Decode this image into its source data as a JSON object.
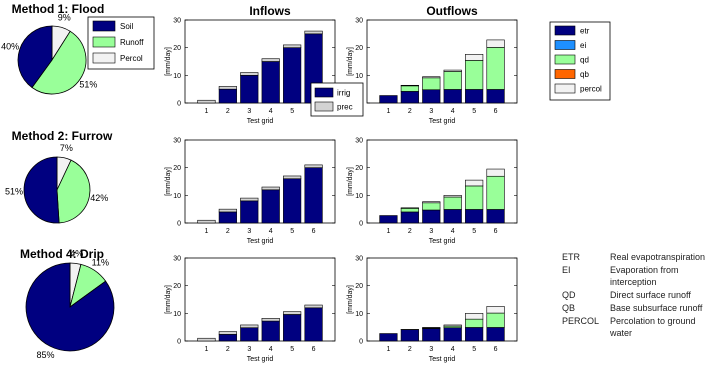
{
  "colors": {
    "soil": "#000080",
    "runoff": "#99FF99",
    "percol": "#F2F2F2",
    "irrig": "#000080",
    "prec": "#D3D3D3",
    "etr": "#000080",
    "ei": "#1E90FF",
    "qd": "#99FF99",
    "qb": "#FF6600",
    "percol_bar": "#F2F2F2"
  },
  "headers": {
    "inflows": "Inflows",
    "outflows": "Outflows"
  },
  "pie_legend": [
    "Soil",
    "Runoff",
    "Percol"
  ],
  "inflow_legend": [
    "irrig",
    "prec"
  ],
  "outflow_legend": [
    "etr",
    "ei",
    "qd",
    "qb",
    "percol"
  ],
  "glossary": [
    {
      "abbr": "ETR",
      "lines": [
        "Real evapotranspiration"
      ]
    },
    {
      "abbr": "EI",
      "lines": [
        "Evaporation from",
        "interception"
      ]
    },
    {
      "abbr": "QD",
      "lines": [
        "Direct surface runoff"
      ]
    },
    {
      "abbr": "QB",
      "lines": [
        "Base subsurface runoff"
      ]
    },
    {
      "abbr": "PERCOL",
      "lines": [
        "Percolation to ground",
        "water"
      ]
    }
  ],
  "chart_data": [
    {
      "type": "pie",
      "title": "Method 1: Flood",
      "labels": [
        "Soil",
        "Runoff",
        "Percol"
      ],
      "values": [
        40,
        51,
        9
      ],
      "value_labels": [
        "40%",
        "51%",
        "9%"
      ]
    },
    {
      "type": "pie",
      "title": "Method 2: Furrow",
      "labels": [
        "Soil",
        "Runoff",
        "Percol"
      ],
      "values": [
        51,
        42,
        7
      ],
      "value_labels": [
        "51%",
        "42%",
        "7%"
      ]
    },
    {
      "type": "pie",
      "title": "Method 4: Drip",
      "labels": [
        "Soil",
        "Runoff",
        "Percol"
      ],
      "values": [
        85,
        11,
        4
      ],
      "value_labels": [
        "85%",
        "11%",
        "4%"
      ]
    },
    {
      "type": "bar",
      "stacked": true,
      "row": 0,
      "col": "inflows",
      "xlabel": "Test grid",
      "ylabel": "[mm/day]",
      "ylim": [
        0,
        30
      ],
      "yticks": [
        0,
        10,
        20,
        30
      ],
      "categories": [
        "1",
        "2",
        "3",
        "4",
        "5",
        "6"
      ],
      "series": [
        {
          "name": "irrig",
          "values": [
            0,
            5,
            10,
            15,
            20,
            25
          ]
        },
        {
          "name": "prec",
          "values": [
            1,
            1,
            1,
            1,
            1,
            1
          ]
        }
      ]
    },
    {
      "type": "bar",
      "stacked": true,
      "row": 1,
      "col": "inflows",
      "xlabel": "Test grid",
      "ylabel": "[mm/day]",
      "ylim": [
        0,
        30
      ],
      "yticks": [
        0,
        10,
        20,
        30
      ],
      "categories": [
        "1",
        "2",
        "3",
        "4",
        "5",
        "6"
      ],
      "series": [
        {
          "name": "irrig",
          "values": [
            0,
            4,
            8,
            12,
            16,
            20
          ]
        },
        {
          "name": "prec",
          "values": [
            1,
            1,
            1,
            1,
            1,
            1
          ]
        }
      ]
    },
    {
      "type": "bar",
      "stacked": true,
      "row": 2,
      "col": "inflows",
      "xlabel": "Test grid",
      "ylabel": "[mm/day]",
      "ylim": [
        0,
        30
      ],
      "yticks": [
        0,
        10,
        20,
        30
      ],
      "categories": [
        "1",
        "2",
        "3",
        "4",
        "5",
        "6"
      ],
      "series": [
        {
          "name": "irrig",
          "values": [
            0,
            2.4,
            4.8,
            7.2,
            9.6,
            12
          ]
        },
        {
          "name": "prec",
          "values": [
            1,
            1,
            1,
            1,
            1,
            1
          ]
        }
      ]
    },
    {
      "type": "bar",
      "stacked": true,
      "row": 0,
      "col": "outflows",
      "xlabel": "Test grid",
      "ylabel": "[mm/day]",
      "ylim": [
        0,
        30
      ],
      "yticks": [
        0,
        10,
        20,
        30
      ],
      "categories": [
        "1",
        "2",
        "3",
        "4",
        "5",
        "6"
      ],
      "series": [
        {
          "name": "etr",
          "values": [
            2.7,
            4.2,
            4.8,
            4.9,
            4.9,
            4.9
          ]
        },
        {
          "name": "ei",
          "values": [
            0,
            0,
            0,
            0,
            0,
            0
          ]
        },
        {
          "name": "qd",
          "values": [
            0,
            2.0,
            4.3,
            6.5,
            10.5,
            15.2
          ]
        },
        {
          "name": "qb",
          "values": [
            0,
            0,
            0,
            0,
            0,
            0
          ]
        },
        {
          "name": "percol",
          "values": [
            0,
            0.2,
            0.4,
            0.5,
            2.2,
            2.7
          ]
        }
      ]
    },
    {
      "type": "bar",
      "stacked": true,
      "row": 1,
      "col": "outflows",
      "xlabel": "Test grid",
      "ylabel": "[mm/day]",
      "ylim": [
        0,
        30
      ],
      "yticks": [
        0,
        10,
        20,
        30
      ],
      "categories": [
        "1",
        "2",
        "3",
        "4",
        "5",
        "6"
      ],
      "series": [
        {
          "name": "etr",
          "values": [
            2.7,
            4.0,
            4.7,
            4.9,
            4.9,
            4.9
          ]
        },
        {
          "name": "ei",
          "values": [
            0,
            0,
            0,
            0,
            0,
            0
          ]
        },
        {
          "name": "qd",
          "values": [
            0,
            1.3,
            2.6,
            4.5,
            8.5,
            12.0
          ]
        },
        {
          "name": "qb",
          "values": [
            0,
            0,
            0,
            0,
            0,
            0
          ]
        },
        {
          "name": "percol",
          "values": [
            0,
            0.2,
            0.4,
            0.6,
            2.1,
            2.6
          ]
        }
      ]
    },
    {
      "type": "bar",
      "stacked": true,
      "row": 2,
      "col": "outflows",
      "xlabel": "Test grid",
      "ylabel": "[mm/day]",
      "ylim": [
        0,
        30
      ],
      "yticks": [
        0,
        10,
        20,
        30
      ],
      "categories": [
        "1",
        "2",
        "3",
        "4",
        "5",
        "6"
      ],
      "series": [
        {
          "name": "etr",
          "values": [
            2.7,
            4.1,
            4.5,
            4.8,
            4.9,
            4.9
          ]
        },
        {
          "name": "ei",
          "values": [
            0,
            0,
            0,
            0,
            0,
            0
          ]
        },
        {
          "name": "qd",
          "values": [
            0,
            0,
            0.2,
            0.6,
            3.0,
            5.2
          ]
        },
        {
          "name": "qb",
          "values": [
            0,
            0,
            0,
            0,
            0,
            0
          ]
        },
        {
          "name": "percol",
          "values": [
            0,
            0.1,
            0.2,
            0.4,
            2.1,
            2.4
          ]
        }
      ]
    }
  ]
}
